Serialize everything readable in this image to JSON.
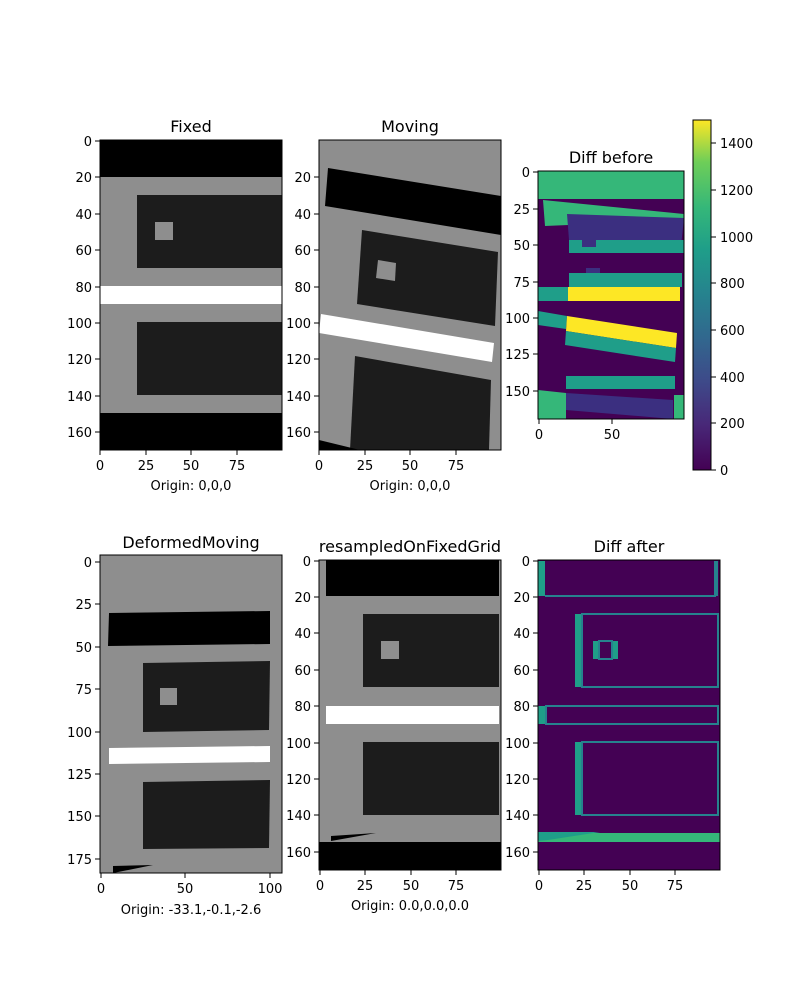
{
  "chart_data": [
    {
      "type": "image",
      "title": "Fixed",
      "xlabel": "Origin: 0,0,0",
      "x_ticks": [
        "0",
        "25",
        "50",
        "75"
      ],
      "y_ticks": [
        "0",
        "20",
        "40",
        "60",
        "80",
        "100",
        "120",
        "140",
        "160"
      ],
      "xlim": [
        0,
        100
      ],
      "ylim": [
        0,
        170
      ]
    },
    {
      "type": "image",
      "title": "Moving",
      "xlabel": "Origin: 0,0,0",
      "x_ticks": [
        "0",
        "25",
        "50",
        "75"
      ],
      "y_ticks": [
        "20",
        "40",
        "60",
        "80",
        "100",
        "120",
        "140",
        "160"
      ],
      "xlim": [
        0,
        100
      ],
      "ylim": [
        0,
        170
      ]
    },
    {
      "type": "heatmap",
      "title": "Diff before",
      "x_ticks": [
        "0",
        "50"
      ],
      "y_ticks": [
        "0",
        "25",
        "50",
        "75",
        "100",
        "125",
        "150"
      ],
      "xlim": [
        0,
        100
      ],
      "ylim": [
        0,
        170
      ],
      "colorbar": {
        "ticks": [
          "0",
          "200",
          "400",
          "600",
          "800",
          "1000",
          "1200",
          "1400"
        ],
        "range": [
          0,
          1500
        ],
        "colormap": "viridis"
      }
    },
    {
      "type": "image",
      "title": "DeformedMoving",
      "xlabel": "Origin: -33.1,-0.1,-2.6",
      "x_ticks": [
        "0",
        "50",
        "100"
      ],
      "y_ticks": [
        "0",
        "25",
        "50",
        "75",
        "100",
        "125",
        "150",
        "175"
      ],
      "xlim": [
        0,
        107
      ],
      "ylim": [
        0,
        188
      ]
    },
    {
      "type": "image",
      "title": "resampledOnFixedGrid",
      "xlabel": "Origin: 0.0,0.0,0.0",
      "x_ticks": [
        "0",
        "25",
        "50",
        "75"
      ],
      "y_ticks": [
        "0",
        "20",
        "40",
        "60",
        "80",
        "100",
        "120",
        "140",
        "160"
      ],
      "xlim": [
        0,
        100
      ],
      "ylim": [
        0,
        170
      ]
    },
    {
      "type": "heatmap",
      "title": "Diff after",
      "x_ticks": [
        "0",
        "25",
        "50",
        "75"
      ],
      "y_ticks": [
        "0",
        "20",
        "40",
        "60",
        "80",
        "100",
        "120",
        "140",
        "160"
      ],
      "xlim": [
        0,
        100
      ],
      "ylim": [
        0,
        170
      ]
    }
  ]
}
